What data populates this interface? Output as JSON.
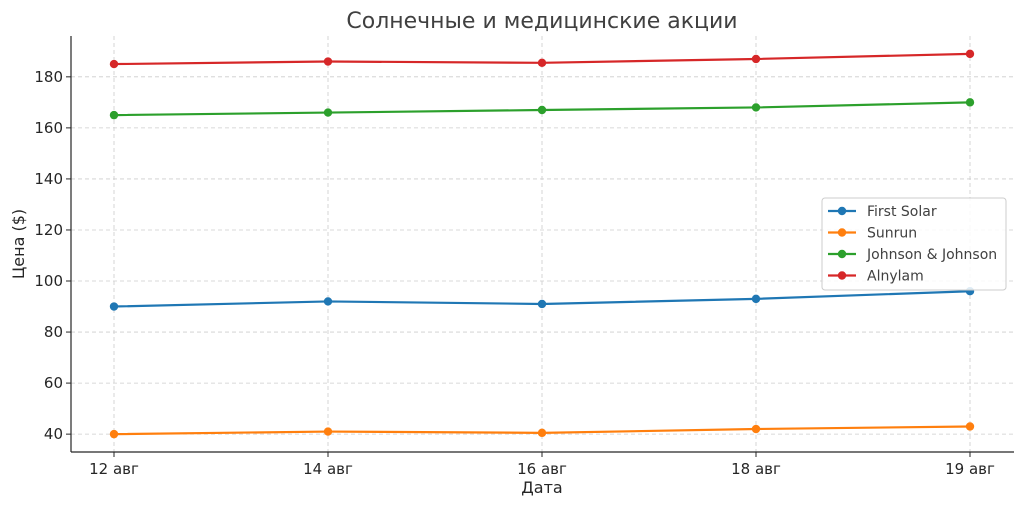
{
  "chart_data": {
    "type": "line",
    "title": "Солнечные и медицинские акции",
    "xlabel": "Дата",
    "ylabel": "Цена ($)",
    "categories": [
      "12 авг",
      "14 авг",
      "16 авг",
      "18 авг",
      "19 авг"
    ],
    "ylim": [
      33,
      196
    ],
    "yticks": [
      40,
      60,
      80,
      100,
      120,
      140,
      160,
      180
    ],
    "grid": true,
    "legend_position": "right",
    "series": [
      {
        "name": "First Solar",
        "color": "#1f77b4",
        "values": [
          90,
          92,
          91,
          93,
          96
        ]
      },
      {
        "name": "Sunrun",
        "color": "#ff7f0e",
        "values": [
          40,
          41,
          40.5,
          42,
          43
        ]
      },
      {
        "name": "Johnson & Johnson",
        "color": "#2ca02c",
        "values": [
          165,
          166,
          167,
          168,
          170
        ]
      },
      {
        "name": "Alnylam",
        "color": "#d62728",
        "values": [
          185,
          186,
          185.5,
          187,
          189
        ]
      }
    ]
  }
}
